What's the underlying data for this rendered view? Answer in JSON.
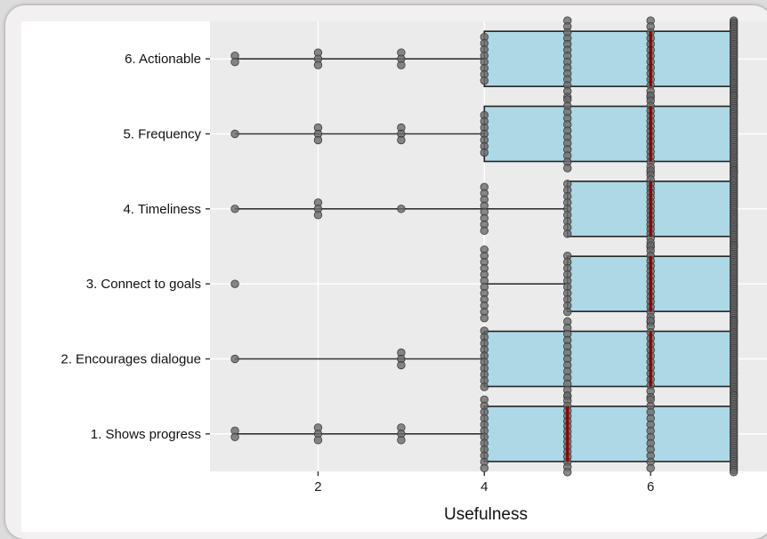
{
  "chart_data": {
    "type": "boxplot",
    "title": "",
    "xlabel": "Usefulness",
    "ylabel": "",
    "xlim": [
      0.7,
      7.4
    ],
    "xticks": [
      2,
      4,
      6
    ],
    "xtick_labels": [
      "2",
      "4",
      "6"
    ],
    "grid": true,
    "colors": {
      "panel": "#ebebeb",
      "gridline": "#ffffff",
      "box_fill": "#add8e6",
      "median": "#8b0000",
      "point": "#6a6a6a"
    },
    "categories": [
      "6. Actionable",
      "5. Frequency",
      "4. Timeliness",
      "3. Connect to goals",
      "2. Encourages dialogue",
      "1. Shows progress"
    ],
    "boxes": [
      {
        "category": "6. Actionable",
        "whisker_low": 1,
        "q1": 4,
        "median": 6,
        "q3": 7,
        "whisker_high": 7
      },
      {
        "category": "5. Frequency",
        "whisker_low": 1,
        "q1": 4,
        "median": 6,
        "q3": 7,
        "whisker_high": 7
      },
      {
        "category": "4. Timeliness",
        "whisker_low": 1,
        "q1": 5,
        "median": 6,
        "q3": 7,
        "whisker_high": 7
      },
      {
        "category": "3. Connect to goals",
        "whisker_low": 4,
        "q1": 5,
        "median": 6,
        "q3": 7,
        "whisker_high": 7
      },
      {
        "category": "2. Encourages dialogue",
        "whisker_low": 1,
        "q1": 4,
        "median": 6,
        "q3": 7,
        "whisker_high": 7
      },
      {
        "category": "1. Shows progress",
        "whisker_low": 1,
        "q1": 4,
        "median": 5,
        "q3": 7,
        "whisker_high": 7
      }
    ],
    "response_counts": [
      {
        "category": "6. Actionable",
        "counts": {
          "1": 2,
          "2": 3,
          "3": 3,
          "4": 8,
          "5": 14,
          "6": 14,
          "7": 40
        }
      },
      {
        "category": "5. Frequency",
        "counts": {
          "1": 1,
          "2": 3,
          "3": 3,
          "4": 7,
          "5": 12,
          "6": 16,
          "7": 38
        }
      },
      {
        "category": "4. Timeliness",
        "counts": {
          "1": 1,
          "2": 3,
          "3": 1,
          "4": 8,
          "5": 9,
          "6": 18,
          "7": 40
        }
      },
      {
        "category": "3. Connect to goals",
        "counts": {
          "1": 1,
          "4": 12,
          "5": 10,
          "6": 16,
          "7": 38
        }
      },
      {
        "category": "2. Encourages dialogue",
        "counts": {
          "1": 1,
          "3": 3,
          "4": 10,
          "5": 13,
          "6": 14,
          "7": 40
        }
      },
      {
        "category": "1. Shows progress",
        "counts": {
          "1": 2,
          "2": 3,
          "3": 3,
          "4": 12,
          "5": 16,
          "6": 12,
          "7": 36
        }
      }
    ]
  }
}
